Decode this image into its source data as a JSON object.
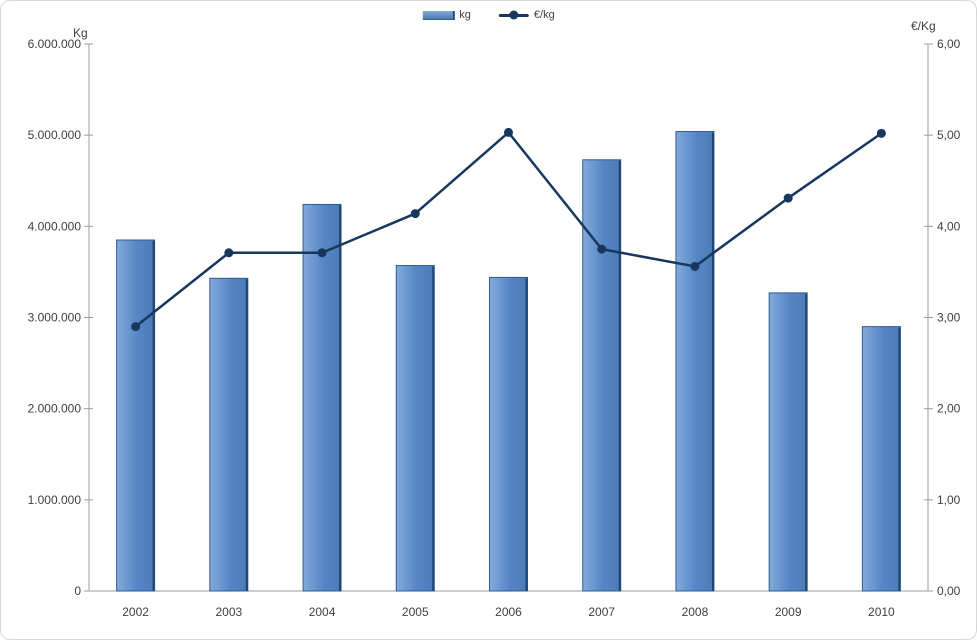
{
  "colors": {
    "bar_light": "#83aadb",
    "bar_mid": "#5585c6",
    "bar_dark": "#4c7cb4",
    "bar_border": "#2e5b94",
    "bar_edge": "#1f4571",
    "line": "#17375e",
    "axis": "#9b9b9b",
    "text": "#404040"
  },
  "chart_data": {
    "type": "combo",
    "title": "",
    "categories": [
      "2002",
      "2003",
      "2004",
      "2005",
      "2006",
      "2007",
      "2008",
      "2009",
      "2010"
    ],
    "series": [
      {
        "name": "kg",
        "type": "bar",
        "axis": "left",
        "values": [
          3850000,
          3430000,
          4240000,
          3570000,
          3440000,
          4730000,
          5040000,
          3270000,
          2900000
        ]
      },
      {
        "name": "€/kg",
        "type": "line",
        "axis": "right",
        "values": [
          2.9,
          3.71,
          3.71,
          4.14,
          5.03,
          3.75,
          3.56,
          4.31,
          5.02
        ]
      }
    ],
    "left_axis": {
      "title": "Kg",
      "min": 0,
      "max": 6000000,
      "step": 1000000,
      "tick_labels": [
        "0",
        "1.000.000",
        "2.000.000",
        "3.000.000",
        "4.000.000",
        "5.000.000",
        "6.000.000"
      ]
    },
    "right_axis": {
      "title": "€/Kg",
      "min": 0,
      "max": 6,
      "step": 1,
      "tick_labels": [
        "0,00",
        "1,00",
        "2,00",
        "3,00",
        "4,00",
        "5,00",
        "6,00"
      ]
    },
    "legend": [
      {
        "label": "kg",
        "swatch": "bar"
      },
      {
        "label": "€/kg",
        "swatch": "line"
      }
    ],
    "grid": false,
    "legend_position": "top-center"
  }
}
